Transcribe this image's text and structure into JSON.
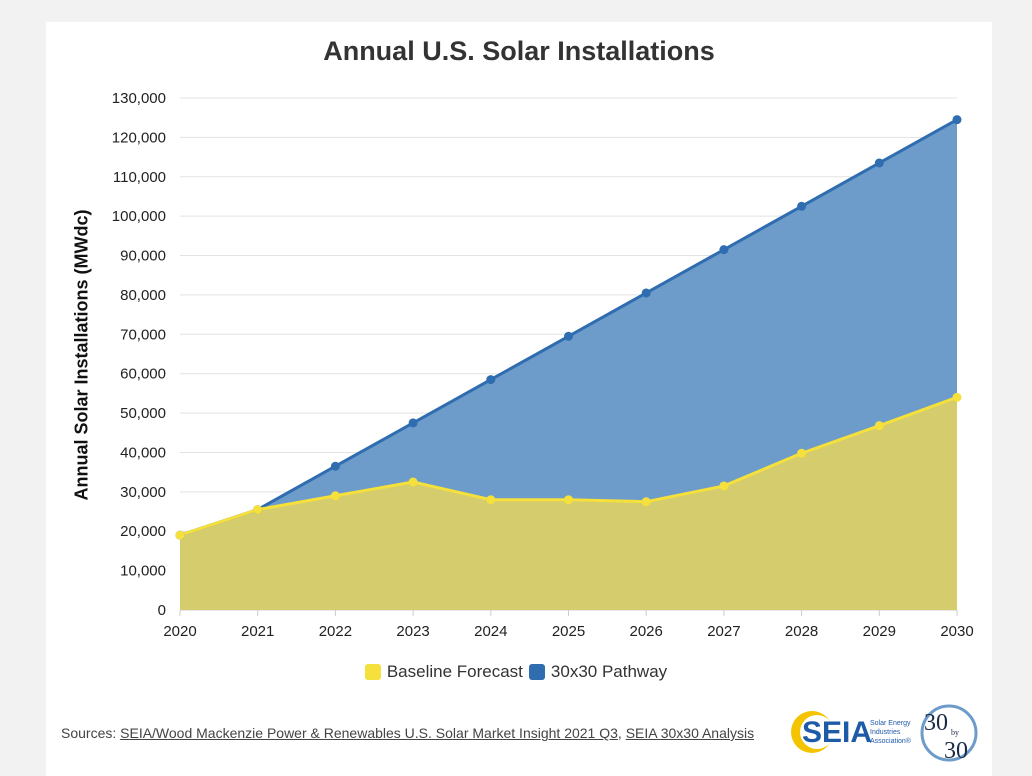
{
  "chart_data": {
    "type": "area",
    "title": "Annual U.S. Solar Installations",
    "ylabel": "Annual Solar Installations (MWdc)",
    "xlabel": "",
    "x": [
      "2020",
      "2021",
      "2022",
      "2023",
      "2024",
      "2025",
      "2026",
      "2027",
      "2028",
      "2029",
      "2030"
    ],
    "ylim": [
      0,
      130000
    ],
    "yticks": [
      "0",
      "10,000",
      "20,000",
      "30,000",
      "40,000",
      "50,000",
      "60,000",
      "70,000",
      "80,000",
      "90,000",
      "100,000",
      "110,000",
      "120,000",
      "130,000"
    ],
    "series": [
      {
        "name": "30x30 Pathway",
        "line_color": "#2f6db0",
        "fill_color": "#6d9bca",
        "values": [
          19000,
          25500,
          36500,
          47500,
          58500,
          69500,
          80500,
          91500,
          102500,
          113500,
          124500
        ]
      },
      {
        "name": "Baseline Forecast",
        "line_color": "#f5e03c",
        "fill_color": "#d4cc6d",
        "values": [
          19000,
          25500,
          29000,
          32500,
          28000,
          28000,
          27500,
          31500,
          39800,
          46800,
          54000
        ]
      }
    ],
    "legend": [
      {
        "name": "Baseline Forecast",
        "color": "#f5e03c"
      },
      {
        "name": "30x30 Pathway",
        "color": "#2f6db0"
      }
    ],
    "legend_position": "bottom",
    "grid": true
  },
  "footer": {
    "sources_label": "Sources: ",
    "source1": "SEIA/Wood Mackenzie Power & Renewables U.S. Solar Market Insight 2021 Q3",
    "separator": ", ",
    "source2": "SEIA 30x30 Analysis"
  },
  "logos": {
    "seia": "SEIA",
    "seia_sub": [
      "Solar Energy",
      "Industries",
      "Association®"
    ],
    "thirty_top": "30",
    "thirty_mid": "by",
    "thirty_bottom": "30"
  }
}
